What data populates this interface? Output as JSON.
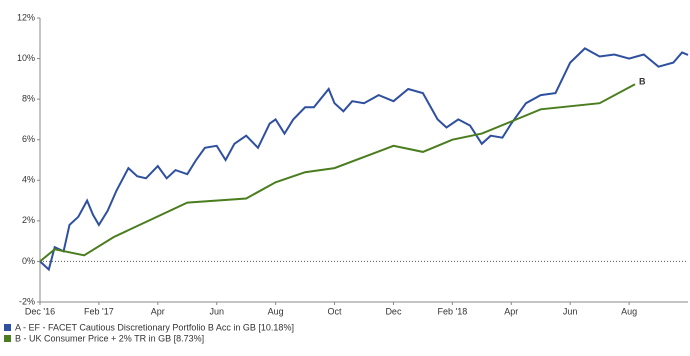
{
  "chart_data": {
    "type": "line",
    "xlim": [
      0,
      22
    ],
    "xticks": [
      {
        "value": 0,
        "label": "Dec '16"
      },
      {
        "value": 2,
        "label": "Feb '17"
      },
      {
        "value": 4,
        "label": "Apr"
      },
      {
        "value": 6,
        "label": "Jun"
      },
      {
        "value": 8,
        "label": "Aug"
      },
      {
        "value": 10,
        "label": "Oct"
      },
      {
        "value": 12,
        "label": "Dec"
      },
      {
        "value": 14,
        "label": "Feb '18"
      },
      {
        "value": 16,
        "label": "Apr"
      },
      {
        "value": 18,
        "label": "Jun"
      },
      {
        "value": 20,
        "label": "Aug"
      }
    ],
    "ylim": [
      -2,
      12
    ],
    "yticks": [
      {
        "value": -2,
        "label": "-2%"
      },
      {
        "value": 0,
        "label": "0%"
      },
      {
        "value": 2,
        "label": "2%"
      },
      {
        "value": 4,
        "label": "4%"
      },
      {
        "value": 6,
        "label": "6%"
      },
      {
        "value": 8,
        "label": "8%"
      },
      {
        "value": 10,
        "label": "10%"
      },
      {
        "value": 12,
        "label": "12%"
      }
    ],
    "annotations": [
      "A",
      "B"
    ],
    "series": [
      {
        "name": "A - EF - FACET Cautious Discretionary Portfolio B Acc in GB [10.18%]",
        "color": "#2f4f9f",
        "x": [
          0,
          0.3,
          0.5,
          0.8,
          1.0,
          1.3,
          1.6,
          1.8,
          2.0,
          2.3,
          2.6,
          3.0,
          3.3,
          3.6,
          4.0,
          4.3,
          4.6,
          5.0,
          5.3,
          5.6,
          6.0,
          6.3,
          6.6,
          7.0,
          7.4,
          7.8,
          8.0,
          8.3,
          8.6,
          9.0,
          9.3,
          9.8,
          10.0,
          10.3,
          10.6,
          11.0,
          11.5,
          12.0,
          12.5,
          13.0,
          13.5,
          13.8,
          14.2,
          14.6,
          15.0,
          15.3,
          15.7,
          16.0,
          16.5,
          17.0,
          17.5,
          18.0,
          18.5,
          19.0,
          19.5,
          20.0,
          20.5,
          21.0,
          21.5,
          21.8,
          22.0
        ],
        "values": [
          0,
          -0.4,
          0.7,
          0.5,
          1.8,
          2.2,
          3.0,
          2.3,
          1.8,
          2.5,
          3.5,
          4.6,
          4.2,
          4.1,
          4.7,
          4.1,
          4.5,
          4.3,
          5.0,
          5.6,
          5.7,
          5.0,
          5.8,
          6.2,
          5.6,
          6.8,
          7.0,
          6.3,
          7.0,
          7.6,
          7.6,
          8.5,
          7.8,
          7.4,
          7.9,
          7.8,
          8.2,
          7.9,
          8.5,
          8.3,
          7.0,
          6.6,
          7.0,
          6.7,
          5.8,
          6.2,
          6.1,
          6.8,
          7.8,
          8.2,
          8.3,
          9.8,
          10.5,
          10.1,
          10.2,
          10.0,
          10.2,
          9.6,
          9.8,
          10.3,
          10.18
        ]
      },
      {
        "name": "B - UK Consumer Price + 2% TR in GB [8.73%]",
        "color": "#4a7d1e",
        "x": [
          0,
          0.5,
          1.5,
          2.5,
          5,
          7,
          8,
          9,
          10,
          12,
          13,
          14,
          15,
          16,
          17,
          19,
          20.2
        ],
        "values": [
          0,
          0.6,
          0.3,
          1.2,
          2.9,
          3.1,
          3.9,
          4.4,
          4.6,
          5.7,
          5.4,
          6.0,
          6.3,
          6.9,
          7.5,
          7.8,
          8.73
        ]
      }
    ]
  }
}
